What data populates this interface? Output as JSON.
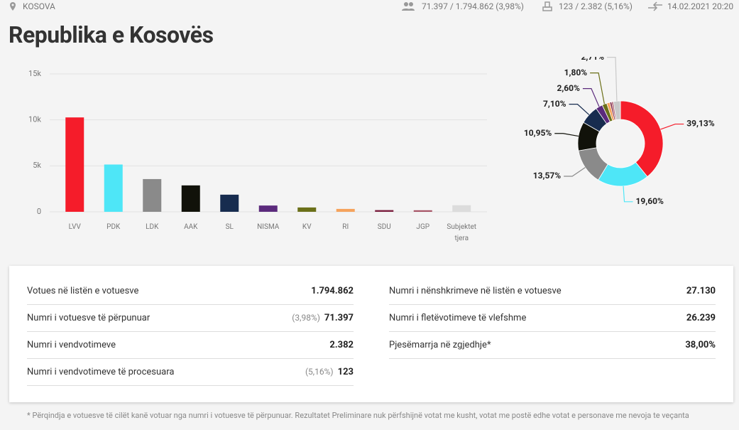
{
  "header": {
    "location": "KOSOVA",
    "voters": "71.397 / 1.794.862 (3,98%)",
    "stations": "123 / 2.382 (5,16%)",
    "updated": "14.02.2021 20:20",
    "title": "Republika e Kosovës"
  },
  "chart_data": [
    {
      "type": "bar",
      "categories": [
        "LVV",
        "PDK",
        "LDK",
        "AAK",
        "SL",
        "NISMA",
        "KV",
        "RI",
        "SDU",
        "JGP",
        "Subjektet tjera"
      ],
      "values": [
        10267,
        5143,
        3561,
        2873,
        1863,
        682,
        472,
        315,
        184,
        168,
        711
      ],
      "colors": [
        "#f51c2a",
        "#4ee6f7",
        "#8a8a8a",
        "#11120a",
        "#172c4f",
        "#5b2a7c",
        "#6b7019",
        "#f6a35c",
        "#7b1f3f",
        "#a75566",
        "#dcdcdc"
      ],
      "ylim": [
        0,
        15000
      ],
      "yticks": [
        0,
        {
          "value": 5000,
          "label": "5k"
        },
        {
          "value": 10000,
          "label": "10k"
        },
        {
          "value": 15000,
          "label": "15k"
        }
      ],
      "grid": true
    },
    {
      "type": "donut",
      "categories": [
        "LVV",
        "PDK",
        "LDK",
        "AAK",
        "SL",
        "NISMA",
        "KV",
        "RI",
        "SDU",
        "JGP",
        "Subjektet tjera"
      ],
      "values": [
        39.13,
        19.6,
        13.57,
        10.95,
        7.1,
        2.6,
        1.8,
        1.2,
        0.7,
        0.64,
        2.71
      ],
      "value_labels": [
        "39,13%",
        "19,60%",
        "13,57%",
        "10,95%",
        "7,10%",
        "2,60%",
        "1,80%",
        null,
        null,
        null,
        "2,71%"
      ],
      "colors": [
        "#f51c2a",
        "#4ee6f7",
        "#8a8a8a",
        "#11120a",
        "#172c4f",
        "#5b2a7c",
        "#6b7019",
        "#f6a35c",
        "#7b1f3f",
        "#a75566",
        "#c9c9c9"
      ]
    }
  ],
  "stats": {
    "left": [
      {
        "label": "Votues në listën e votuesve",
        "value": "1.794.862"
      },
      {
        "label": "Numri i votuesve të përpunuar",
        "pct": "(3,98%)",
        "value": "71.397"
      },
      {
        "label": "Numri i vendvotimeve",
        "value": "2.382"
      },
      {
        "label": "Numri i vendvotimeve të procesuara",
        "pct": "(5,16%)",
        "value": "123"
      }
    ],
    "right": [
      {
        "label": "Numri i nënshkrimeve në listën e votuesve",
        "value": "27.130"
      },
      {
        "label": "Numri i fletëvotimeve të vlefshme",
        "value": "26.239"
      },
      {
        "label": "Pjesëmarrja në zgjedhje*",
        "value": "38,00%"
      }
    ]
  },
  "footnote": "* Përqindja e votuesve të cilët kanë votuar nga numri i votuesve të përpunuar. Rezultatet Preliminare nuk përfshijnë votat me kusht, votat me postë edhe votat e personave me nevoja te veçanta"
}
